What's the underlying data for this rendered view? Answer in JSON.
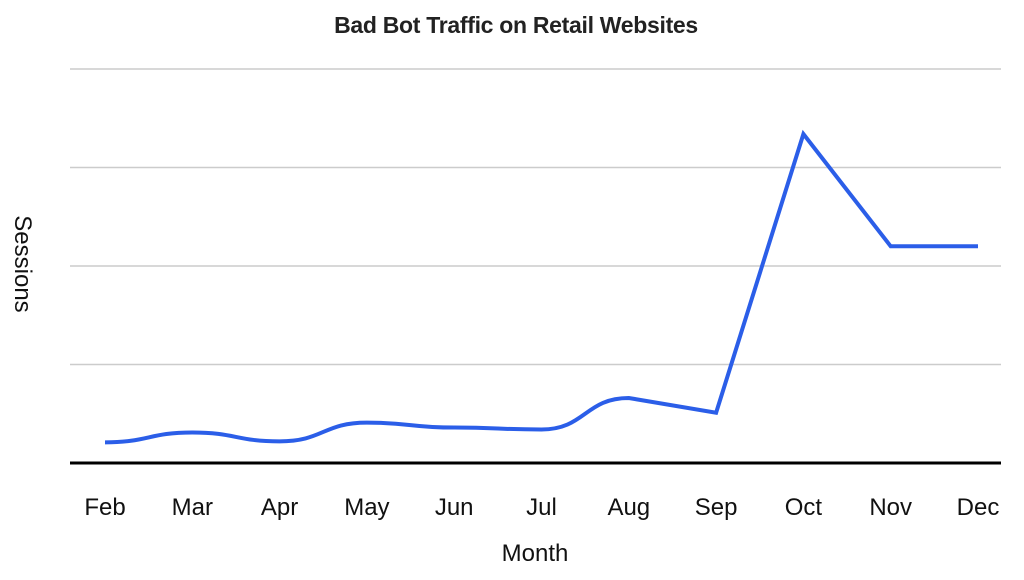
{
  "chart_data": {
    "type": "line",
    "title": "Bad Bot Traffic on Retail Websites",
    "xlabel": "Month",
    "ylabel": "Sessions",
    "categories": [
      "Feb",
      "Mar",
      "Apr",
      "May",
      "Jun",
      "Jul",
      "Aug",
      "Sep",
      "Oct",
      "Nov",
      "Dec"
    ],
    "series": [
      {
        "name": "Sessions",
        "color": "#2b5ee8",
        "values": [
          0.21,
          0.31,
          0.22,
          0.41,
          0.36,
          0.34,
          0.66,
          0.51,
          3.34,
          2.2,
          2.2
        ]
      }
    ],
    "ylim": [
      0,
      4
    ],
    "y_tick_labels_shown": false,
    "gridlines": [
      1,
      2,
      3,
      4
    ],
    "grid": true,
    "legend": "none",
    "value_units": "relative (gridline spacing = 1 unit; no y tick labels shown)"
  },
  "style": {
    "line_color": "#2b5ee8",
    "grid_color": "#cccccc",
    "axis_color": "#000000"
  }
}
